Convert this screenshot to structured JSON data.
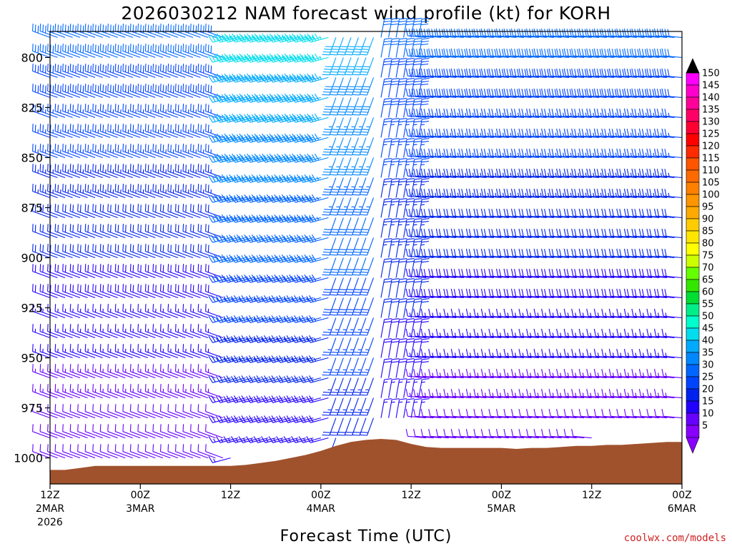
{
  "chart_data": {
    "type": "wind-barb-time-height",
    "title": "2026030212 NAM forecast wind profile (kt) for KORH",
    "xlabel": "Forecast Time (UTC)",
    "units": "kt",
    "x_range_hours": [
      0,
      84
    ],
    "y_range_hPa": [
      1013,
      787
    ],
    "y_ticks": [
      {
        "value": 800,
        "label": "800"
      },
      {
        "value": 825,
        "label": "825"
      },
      {
        "value": 850,
        "label": "850"
      },
      {
        "value": 875,
        "label": "875"
      },
      {
        "value": 900,
        "label": "900"
      },
      {
        "value": 925,
        "label": "925"
      },
      {
        "value": 950,
        "label": "950"
      },
      {
        "value": 975,
        "label": "975"
      },
      {
        "value": 1000,
        "label": "1000"
      }
    ],
    "x_ticks": [
      {
        "hour": 0,
        "label": "12Z",
        "sub1": "2MAR",
        "sub2": "2026"
      },
      {
        "hour": 12,
        "label": "00Z",
        "sub1": "3MAR",
        "sub2": ""
      },
      {
        "hour": 24,
        "label": "12Z",
        "sub1": "",
        "sub2": ""
      },
      {
        "hour": 36,
        "label": "00Z",
        "sub1": "4MAR",
        "sub2": ""
      },
      {
        "hour": 48,
        "label": "12Z",
        "sub1": "",
        "sub2": ""
      },
      {
        "hour": 60,
        "label": "00Z",
        "sub1": "5MAR",
        "sub2": ""
      },
      {
        "hour": 72,
        "label": "12Z",
        "sub1": "",
        "sub2": ""
      },
      {
        "hour": 84,
        "label": "00Z",
        "sub1": "6MAR",
        "sub2": ""
      }
    ],
    "colorbar": {
      "labels": [
        "150",
        "145",
        "140",
        "135",
        "130",
        "125",
        "120",
        "115",
        "110",
        "105",
        "100",
        "95",
        "90",
        "85",
        "80",
        "75",
        "70",
        "65",
        "60",
        "55",
        "50",
        "45",
        "40",
        "35",
        "30",
        "25",
        "20",
        "15",
        "10",
        "5"
      ],
      "colors": [
        "#ff00ff",
        "#ff00cc",
        "#ff0099",
        "#ff0066",
        "#ff0033",
        "#ff0000",
        "#ff2a00",
        "#ff5500",
        "#ff6a00",
        "#ff8000",
        "#ff9500",
        "#ffaa00",
        "#ffcc00",
        "#ffe600",
        "#ffff00",
        "#ccff00",
        "#66ff00",
        "#33e600",
        "#00dd33",
        "#00ee88",
        "#00ffcc",
        "#00ddee",
        "#00aaff",
        "#0088ff",
        "#0066ff",
        "#0044ff",
        "#0022ee",
        "#2200ff",
        "#6600ff",
        "#8800ff"
      ],
      "top_arrow_color": "#000000",
      "bottom_arrow_color": "#8800ff"
    },
    "terrain_color": "#a0522d",
    "surface_pressure_hPa": [
      [
        0,
        1006.0
      ],
      [
        2,
        1006.0
      ],
      [
        4,
        1005.0
      ],
      [
        6,
        1004.0
      ],
      [
        8,
        1004.0
      ],
      [
        10,
        1004.0
      ],
      [
        12,
        1004.0
      ],
      [
        14,
        1004.0
      ],
      [
        16,
        1004.0
      ],
      [
        18,
        1004.0
      ],
      [
        20,
        1004.0
      ],
      [
        22,
        1004.0
      ],
      [
        24,
        1004.0
      ],
      [
        26,
        1003.5
      ],
      [
        28,
        1002.5
      ],
      [
        30,
        1001.5
      ],
      [
        32,
        1000.0
      ],
      [
        34,
        998.5
      ],
      [
        35,
        997.5
      ],
      [
        36,
        996.5
      ],
      [
        38,
        994.0
      ],
      [
        40,
        992.0
      ],
      [
        42,
        991.0
      ],
      [
        44,
        990.5
      ],
      [
        46,
        991.0
      ],
      [
        48,
        993.0
      ],
      [
        50,
        994.5
      ],
      [
        52,
        995.0
      ],
      [
        54,
        995.0
      ],
      [
        56,
        995.0
      ],
      [
        58,
        995.0
      ],
      [
        60,
        995.0
      ],
      [
        62,
        995.5
      ],
      [
        64,
        995.0
      ],
      [
        66,
        995.0
      ],
      [
        68,
        994.5
      ],
      [
        70,
        994.0
      ],
      [
        72,
        994.0
      ],
      [
        74,
        993.5
      ],
      [
        76,
        993.5
      ],
      [
        78,
        993.0
      ],
      [
        80,
        992.5
      ],
      [
        82,
        992.0
      ],
      [
        84,
        992.0
      ]
    ],
    "barb_times_hours": "every 1 hour from 0 to 84",
    "barb_levels_hPa": [
      790,
      800,
      810,
      820,
      830,
      840,
      850,
      860,
      870,
      880,
      890,
      900,
      910,
      920,
      930,
      940,
      950,
      960,
      970,
      980,
      990,
      1000,
      1005
    ],
    "wind_regimes": [
      {
        "hours": [
          0,
          24
        ],
        "dir_deg": 290,
        "speed_kt_800": 30,
        "speed_kt_1000": 10
      },
      {
        "hours": [
          24,
          38
        ],
        "dir_deg": 255,
        "speed_kt_800": 45,
        "speed_kt_1000": 15
      },
      {
        "hours": [
          38,
          44
        ],
        "dir_deg": 200,
        "speed_kt_800": 40,
        "speed_kt_1000": 20
      },
      {
        "hours": [
          44,
          50
        ],
        "dir_deg": 10,
        "speed_kt_800": 30,
        "speed_kt_1000": 15
      },
      {
        "hours": [
          50,
          84
        ],
        "dir_deg": 275,
        "speed_kt_800": 30,
        "speed_kt_1000": 10
      }
    ]
  },
  "credit": "coolwx.com/models"
}
